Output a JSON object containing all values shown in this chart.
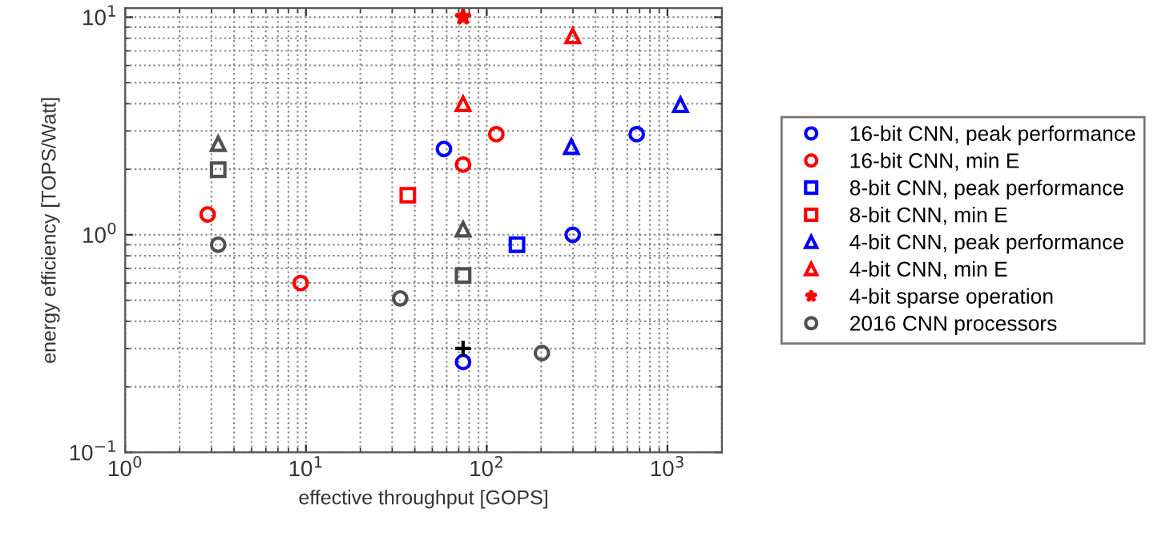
{
  "chart_data": {
    "type": "scatter",
    "xlabel": "effective throughput [GOPS]",
    "ylabel": "energy efficiency [TOPS/Watt]",
    "log": "xy",
    "xlim": [
      1,
      2000
    ],
    "ylim": [
      0.1,
      11
    ],
    "xticks": [
      {
        "value": 1,
        "label": "10$^{0}$"
      },
      {
        "value": 10,
        "label": "10$^{1}$"
      },
      {
        "value": 100,
        "label": "10$^{2}$"
      },
      {
        "value": 1000,
        "label": "10$^{3}$"
      }
    ],
    "yticks": [
      {
        "value": 0.1,
        "label": "10$^{−1}$"
      },
      {
        "value": 1,
        "label": "10$^{0}$"
      },
      {
        "value": 10,
        "label": "10$^{1}$"
      }
    ],
    "grid": true,
    "legend": "right",
    "series": [
      {
        "name": "16-bit CNN, peak performance",
        "color": "#0000ff",
        "marker": "circle",
        "x": [
          58,
          676,
          299,
          74
        ],
        "values": [
          2.48,
          2.9,
          1.0,
          0.26
        ]
      },
      {
        "name": "16-bit CNN, min E",
        "color": "#ff0000",
        "marker": "circle",
        "x": [
          2.86,
          113,
          74,
          9.35
        ],
        "values": [
          1.24,
          2.9,
          2.1,
          0.6
        ]
      },
      {
        "name": "8-bit CNN, peak performance",
        "color": "#0000ff",
        "marker": "square",
        "x": [
          147
        ],
        "values": [
          0.9
        ]
      },
      {
        "name": "8-bit CNN, min E",
        "color": "#ff0000",
        "marker": "square",
        "x": [
          36.6
        ],
        "values": [
          1.52
        ]
      },
      {
        "name": "4-bit CNN, peak performance",
        "color": "#0000ff",
        "marker": "triangle",
        "x": [
          1180,
          294
        ],
        "values": [
          3.96,
          2.54
        ]
      },
      {
        "name": "4-bit CNN, min E",
        "color": "#ff0000",
        "marker": "triangle",
        "x": [
          299,
          74
        ],
        "values": [
          8.2,
          4.0
        ]
      },
      {
        "name": "4-bit sparse operation",
        "color": "#ff0000",
        "marker": "star",
        "x": [
          74
        ],
        "values": [
          10
        ]
      },
      {
        "name": "2016 CNN processors",
        "color": "#505050",
        "marker": "circle",
        "x": [
          3.27,
          33.2,
          202
        ],
        "values": [
          0.9,
          0.51,
          0.286
        ]
      },
      {
        "color": "#505050",
        "marker": "square",
        "x": [
          3.27,
          74
        ],
        "values": [
          1.99,
          0.65
        ]
      },
      {
        "color": "#505050",
        "marker": "triangle",
        "x": [
          3.27,
          74
        ],
        "values": [
          2.62,
          1.06
        ]
      },
      {
        "color": "#000000",
        "marker": "cross",
        "x": [
          74
        ],
        "values": [
          0.3
        ]
      }
    ]
  }
}
